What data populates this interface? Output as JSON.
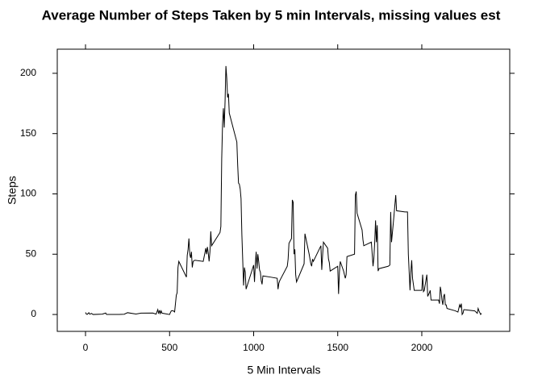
{
  "chart_data": {
    "type": "line",
    "title": "Average Number of Steps Taken by 5 min Intervals, missing values est",
    "x_label": "5 Min Intervals",
    "y_label": "Steps",
    "x": [
      0,
      5,
      10,
      20,
      25,
      35,
      45,
      100,
      120,
      125,
      200,
      230,
      250,
      300,
      330,
      400,
      420,
      430,
      435,
      440,
      445,
      450,
      455,
      500,
      505,
      510,
      520,
      530,
      540,
      545,
      550,
      555,
      600,
      605,
      610,
      615,
      620,
      625,
      630,
      635,
      640,
      650,
      700,
      710,
      715,
      720,
      725,
      730,
      735,
      740,
      745,
      750,
      800,
      805,
      810,
      815,
      820,
      825,
      830,
      835,
      840,
      845,
      850,
      855,
      900,
      905,
      910,
      915,
      920,
      925,
      930,
      935,
      940,
      945,
      950,
      955,
      1000,
      1005,
      1010,
      1015,
      1020,
      1025,
      1030,
      1035,
      1040,
      1045,
      1050,
      1055,
      1100,
      1140,
      1145,
      1150,
      1155,
      1200,
      1205,
      1210,
      1225,
      1230,
      1235,
      1240,
      1245,
      1250,
      1255,
      1300,
      1305,
      1330,
      1340,
      1345,
      1350,
      1355,
      1400,
      1405,
      1410,
      1415,
      1440,
      1445,
      1450,
      1455,
      1500,
      1505,
      1510,
      1515,
      1535,
      1545,
      1550,
      1555,
      1600,
      1605,
      1610,
      1615,
      1645,
      1650,
      1655,
      1700,
      1705,
      1710,
      1715,
      1720,
      1725,
      1730,
      1735,
      1740,
      1745,
      1800,
      1810,
      1815,
      1820,
      1830,
      1845,
      1850,
      1900,
      1915,
      1920,
      1930,
      1935,
      1940,
      1945,
      1950,
      1955,
      2000,
      2005,
      2010,
      2015,
      2030,
      2035,
      2045,
      2050,
      2055,
      2100,
      2105,
      2110,
      2115,
      2120,
      2125,
      2130,
      2135,
      2140,
      2145,
      2150,
      2200,
      2215,
      2225,
      2230,
      2235,
      2240,
      2245,
      2250,
      2255,
      2315,
      2330,
      2335,
      2340,
      2350,
      2355
    ],
    "series": [
      {
        "name": "steps",
        "color": "#000000",
        "values": [
          1.7,
          0.3,
          0.1,
          1.5,
          0.2,
          0.9,
          0,
          0.3,
          1.2,
          0,
          0,
          0.2,
          1.5,
          0.4,
          1.1,
          1.2,
          0.3,
          4.1,
          0.6,
          3.5,
          0.8,
          3,
          1.1,
          0,
          1.6,
          3,
          3.2,
          2.1,
          16,
          18,
          39,
          44,
          31,
          49,
          54,
          63,
          50,
          47,
          52,
          39,
          44,
          45,
          44,
          51,
          55,
          50,
          56,
          51,
          44,
          52,
          69,
          57,
          68,
          73,
          129,
          158,
          171,
          155,
          177,
          206,
          196,
          180,
          183,
          167,
          143,
          124,
          109,
          108,
          104,
          96,
          66,
          45,
          24,
          39,
          35,
          21,
          41,
          27,
          42,
          52,
          38,
          50,
          44,
          37,
          35,
          28,
          25,
          32,
          31,
          30,
          21,
          26,
          28,
          40,
          46,
          59,
          63,
          95,
          93,
          50,
          54,
          33,
          27,
          42,
          67,
          50,
          42,
          40,
          46,
          44,
          57,
          37,
          49,
          60,
          55,
          46,
          43,
          36,
          40,
          17,
          35,
          44,
          36,
          30,
          33,
          48,
          50,
          99,
          102,
          84,
          70,
          62,
          57,
          60,
          50,
          40,
          47,
          60,
          78,
          60,
          74,
          36,
          38,
          40,
          41,
          85,
          60,
          75,
          99,
          86,
          85,
          85,
          50,
          20,
          35,
          45,
          30,
          25,
          20,
          20,
          33,
          19,
          20,
          33,
          15,
          18,
          20,
          12,
          12,
          9,
          23,
          19,
          12,
          8,
          15,
          17,
          8,
          8,
          5,
          3,
          2,
          8,
          6,
          9,
          0,
          1,
          4,
          4,
          3,
          1,
          5,
          3,
          0,
          1
        ]
      }
    ],
    "xlim": [
      -168,
      2523
    ],
    "ylim": [
      -14,
      220
    ],
    "xticks": [
      0,
      500,
      1000,
      1500,
      2000
    ],
    "yticks": [
      0,
      50,
      100,
      150,
      200
    ]
  }
}
